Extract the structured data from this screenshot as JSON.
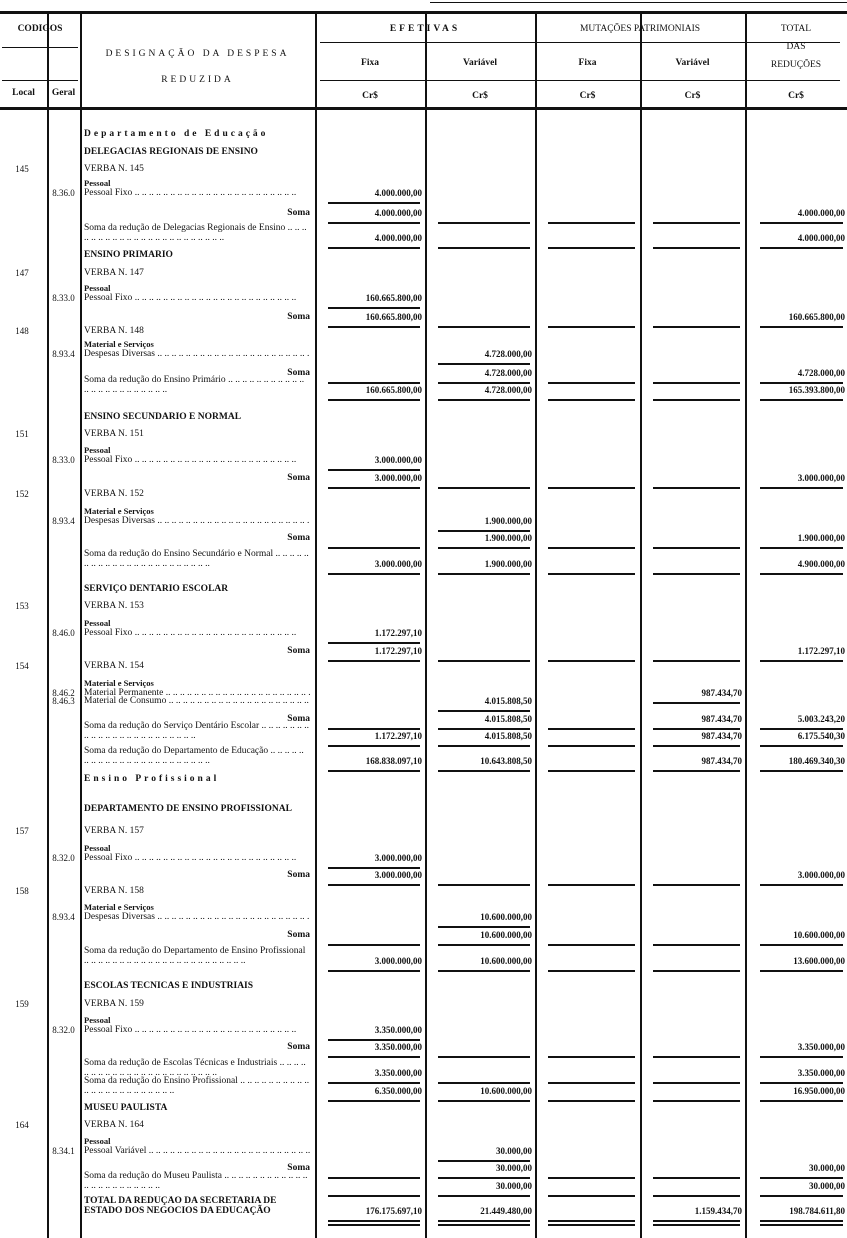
{
  "header": {
    "codigos": "CODIGOS",
    "local": "Local",
    "geral": "Geral",
    "designacao": "DESIGNAÇÃO DA DESPESA",
    "reduzida": "REDUZIDA",
    "efetivas": "EFETIVAS",
    "mutacoes": "MUTAÇÕES PATRIMONIAIS",
    "fixa": "Fixa",
    "variavel": "Variável",
    "total": "TOTAL",
    "das": "DAS",
    "reducoes": "REDUÇÕES",
    "currency": "Cr$"
  },
  "rows": [
    {
      "kind": "dept",
      "text": "Departamento de Educação"
    },
    {
      "kind": "section",
      "text": "DELEGACIAS REGIONAIS DE ENSINO"
    },
    {
      "kind": "verba",
      "local": "145",
      "text": "VERBA N. 145"
    },
    {
      "kind": "item",
      "geral": "8.36.0",
      "group": "Pessoal",
      "text": "Pessoal Fixo",
      "values": {
        "ef_fixa": "4.000.000,00"
      }
    },
    {
      "kind": "soma",
      "text": "Soma",
      "values": {
        "ef_fixa": "4.000.000,00",
        "total": "4.000.000,00"
      }
    },
    {
      "kind": "subtotal",
      "text": "Soma da redução de Delegacias Regionais de Ensino",
      "values": {
        "ef_fixa": "4.000.000,00",
        "total": "4.000.000,00"
      }
    },
    {
      "kind": "section",
      "text": "ENSINO PRIMARIO"
    },
    {
      "kind": "verba",
      "local": "147",
      "text": "VERBA N. 147"
    },
    {
      "kind": "item",
      "geral": "8.33.0",
      "group": "Pessoal",
      "text": "Pessoal Fixo",
      "values": {
        "ef_fixa": "160.665.800,00"
      }
    },
    {
      "kind": "soma",
      "text": "Soma",
      "values": {
        "ef_fixa": "160.665.800,00",
        "total": "160.665.800,00"
      }
    },
    {
      "kind": "verba",
      "local": "148",
      "text": "VERBA N. 148"
    },
    {
      "kind": "item",
      "geral": "8.93.4",
      "group": "Material e Serviços",
      "text": "Despesas Diversas",
      "values": {
        "ef_var": "4.728.000,00"
      }
    },
    {
      "kind": "soma",
      "text": "Soma",
      "values": {
        "ef_var": "4.728.000,00",
        "total": "4.728.000,00"
      }
    },
    {
      "kind": "subtotal",
      "text": "Soma da redução do Ensino Primário",
      "values": {
        "ef_fixa": "160.665.800,00",
        "ef_var": "4.728.000,00",
        "total": "165.393.800,00"
      }
    },
    {
      "kind": "section",
      "text": "ENSINO SECUNDARIO E NORMAL"
    },
    {
      "kind": "verba",
      "local": "151",
      "text": "VERBA N. 151"
    },
    {
      "kind": "item",
      "geral": "8.33.0",
      "group": "Pessoal",
      "text": "Pessoal Fixo",
      "values": {
        "ef_fixa": "3.000.000,00"
      }
    },
    {
      "kind": "soma",
      "text": "Soma",
      "values": {
        "ef_fixa": "3.000.000,00",
        "total": "3.000.000,00"
      }
    },
    {
      "kind": "verba",
      "local": "152",
      "text": "VERBA N. 152"
    },
    {
      "kind": "item",
      "geral": "8.93.4",
      "group": "Material e Serviços",
      "text": "Despesas Diversas",
      "values": {
        "ef_var": "1.900.000,00"
      }
    },
    {
      "kind": "soma",
      "text": "Soma",
      "values": {
        "ef_var": "1.900.000,00",
        "total": "1.900.000,00"
      }
    },
    {
      "kind": "subtotal",
      "text": "Soma da redução do Ensino Secundário e Normal",
      "values": {
        "ef_fixa": "3.000.000,00",
        "ef_var": "1.900.000,00",
        "total": "4.900.000,00"
      }
    },
    {
      "kind": "section",
      "text": "SERVIÇO DENTARIO ESCOLAR"
    },
    {
      "kind": "verba",
      "local": "153",
      "text": "VERBA N. 153"
    },
    {
      "kind": "item",
      "geral": "8.46.0",
      "group": "Pessoal",
      "text": "Pessoal Fixo",
      "values": {
        "ef_fixa": "1.172.297,10"
      }
    },
    {
      "kind": "soma",
      "text": "Soma",
      "values": {
        "ef_fixa": "1.172.297,10",
        "total": "1.172.297,10"
      }
    },
    {
      "kind": "verba",
      "local": "154",
      "text": "VERBA N. 154"
    },
    {
      "kind": "item",
      "geral": "8.46.2",
      "group": "Material e Serviços",
      "text": "Material Permanente",
      "values": {
        "mut_var": "987.434,70"
      }
    },
    {
      "kind": "item",
      "geral": "8.46.3",
      "text": "Material de Consumo",
      "values": {
        "ef_var": "4.015.808,50"
      }
    },
    {
      "kind": "soma",
      "text": "Soma",
      "values": {
        "ef_var": "4.015.808,50",
        "mut_var": "987.434,70",
        "total": "5.003.243,20"
      }
    },
    {
      "kind": "subtotal",
      "text": "Soma da redução do Serviço Dentário Escolar",
      "values": {
        "ef_fixa": "1.172.297,10",
        "ef_var": "4.015.808,50",
        "mut_var": "987.434,70",
        "total": "6.175.540,30"
      }
    },
    {
      "kind": "subtotal",
      "text": "Soma da redução do Departamento de Educação",
      "values": {
        "ef_fixa": "168.838.097,10",
        "ef_var": "10.643.808,50",
        "mut_var": "987.434,70",
        "total": "180.469.340,30"
      }
    },
    {
      "kind": "dept",
      "text": "Ensino Profissional"
    },
    {
      "kind": "section",
      "text": "DEPARTAMENTO DE ENSINO PROFISSIONAL"
    },
    {
      "kind": "verba",
      "local": "157",
      "text": "VERBA N. 157"
    },
    {
      "kind": "item",
      "geral": "8.32.0",
      "group": "Pessoal",
      "text": "Pessoal Fixo",
      "values": {
        "ef_fixa": "3.000.000,00"
      }
    },
    {
      "kind": "soma",
      "text": "Soma",
      "values": {
        "ef_fixa": "3.000.000,00",
        "total": "3.000.000,00"
      }
    },
    {
      "kind": "verba",
      "local": "158",
      "text": "VERBA N. 158"
    },
    {
      "kind": "item",
      "geral": "8.93.4",
      "group": "Material e Serviços",
      "text": "Despesas Diversas",
      "values": {
        "ef_var": "10.600.000,00"
      }
    },
    {
      "kind": "soma",
      "text": "Soma",
      "values": {
        "ef_var": "10.600.000,00",
        "total": "10.600.000,00"
      }
    },
    {
      "kind": "subtotal",
      "text": "Soma da redução do Departamento de Ensino Profissional",
      "values": {
        "ef_fixa": "3.000.000,00",
        "ef_var": "10.600.000,00",
        "total": "13.600.000,00"
      }
    },
    {
      "kind": "section",
      "text": "ESCOLAS TÉCNICAS E INDUSTRIAIS"
    },
    {
      "kind": "verba",
      "local": "159",
      "text": "VERBA N. 159"
    },
    {
      "kind": "item",
      "geral": "8.32.0",
      "group": "Pessoal",
      "text": "Pessoal Fixo",
      "values": {
        "ef_fixa": "3.350.000,00"
      }
    },
    {
      "kind": "soma",
      "text": "Soma",
      "values": {
        "ef_fixa": "3.350.000,00",
        "total": "3.350.000,00"
      }
    },
    {
      "kind": "subtotal",
      "text": "Soma da redução de Escolas Técnicas e Industriais",
      "values": {
        "ef_fixa": "3.350.000,00",
        "total": "3.350.000,00"
      }
    },
    {
      "kind": "subtotal",
      "text": "Soma da redução do Ensino Profissional",
      "values": {
        "ef_fixa": "6.350.000,00",
        "ef_var": "10.600.000,00",
        "total": "16.950.000,00"
      }
    },
    {
      "kind": "section",
      "text": "MUSEU PAULISTA"
    },
    {
      "kind": "verba",
      "local": "164",
      "text": "VERBA N. 164"
    },
    {
      "kind": "item",
      "geral": "8.34.1",
      "group": "Pessoal",
      "text": "Pessoal Variável",
      "values": {
        "ef_var": "30.000,00"
      }
    },
    {
      "kind": "soma",
      "text": "Soma",
      "values": {
        "ef_var": "30.000,00",
        "total": "30.000,00"
      }
    },
    {
      "kind": "subtotal",
      "text": "Soma da redução do Museu Paulista",
      "values": {
        "ef_var": "30.000,00",
        "total": "30.000,00"
      }
    },
    {
      "kind": "total",
      "text": "TOTAL DA REDUÇÃO DA SECRETARIA DE ESTADO DOS NEGOCIOS DA EDUCAÇÃO",
      "values": {
        "ef_fixa": "176.175.697,10",
        "ef_var": "21.449.480,00",
        "mut_var": "1.159.434,70",
        "total": "198.784.611,80"
      }
    }
  ]
}
